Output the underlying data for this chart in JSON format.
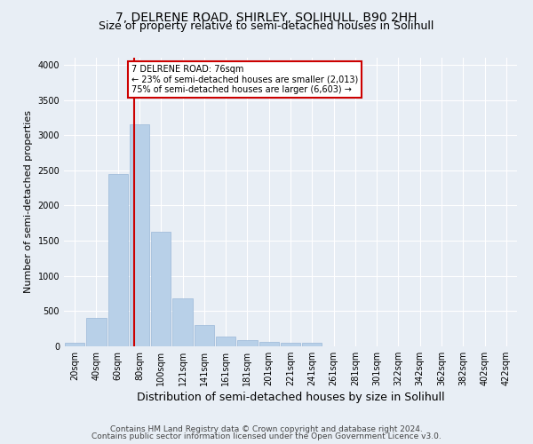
{
  "title": "7, DELRENE ROAD, SHIRLEY, SOLIHULL, B90 2HH",
  "subtitle": "Size of property relative to semi-detached houses in Solihull",
  "xlabel": "Distribution of semi-detached houses by size in Solihull",
  "ylabel": "Number of semi-detached properties",
  "footer1": "Contains HM Land Registry data © Crown copyright and database right 2024.",
  "footer2": "Contains public sector information licensed under the Open Government Licence v3.0.",
  "bar_labels": [
    "20sqm",
    "40sqm",
    "60sqm",
    "80sqm",
    "100sqm",
    "121sqm",
    "141sqm",
    "161sqm",
    "181sqm",
    "201sqm",
    "221sqm",
    "241sqm",
    "261sqm",
    "281sqm",
    "301sqm",
    "322sqm",
    "342sqm",
    "362sqm",
    "382sqm",
    "402sqm",
    "422sqm"
  ],
  "bar_values": [
    50,
    400,
    2450,
    3150,
    1625,
    675,
    300,
    140,
    90,
    65,
    50,
    50,
    5,
    0,
    0,
    0,
    0,
    0,
    0,
    0,
    0
  ],
  "bar_color": "#b8d0e8",
  "bar_edge_color": "#9ab8d8",
  "vline_color": "#cc0000",
  "vline_index": 2.76,
  "annotation_line1": "7 DELRENE ROAD: 76sqm",
  "annotation_line2": "← 23% of semi-detached houses are smaller (2,013)",
  "annotation_line3": "75% of semi-detached houses are larger (6,603) →",
  "annotation_box_color": "#ffffff",
  "annotation_box_edge": "#cc0000",
  "ylim": [
    0,
    4100
  ],
  "yticks": [
    0,
    500,
    1000,
    1500,
    2000,
    2500,
    3000,
    3500,
    4000
  ],
  "background_color": "#e8eef5",
  "plot_bg_color": "#e8eef5",
  "grid_color": "#ffffff",
  "title_fontsize": 10,
  "subtitle_fontsize": 9,
  "xlabel_fontsize": 9,
  "ylabel_fontsize": 8,
  "tick_fontsize": 7,
  "footer_fontsize": 6.5
}
